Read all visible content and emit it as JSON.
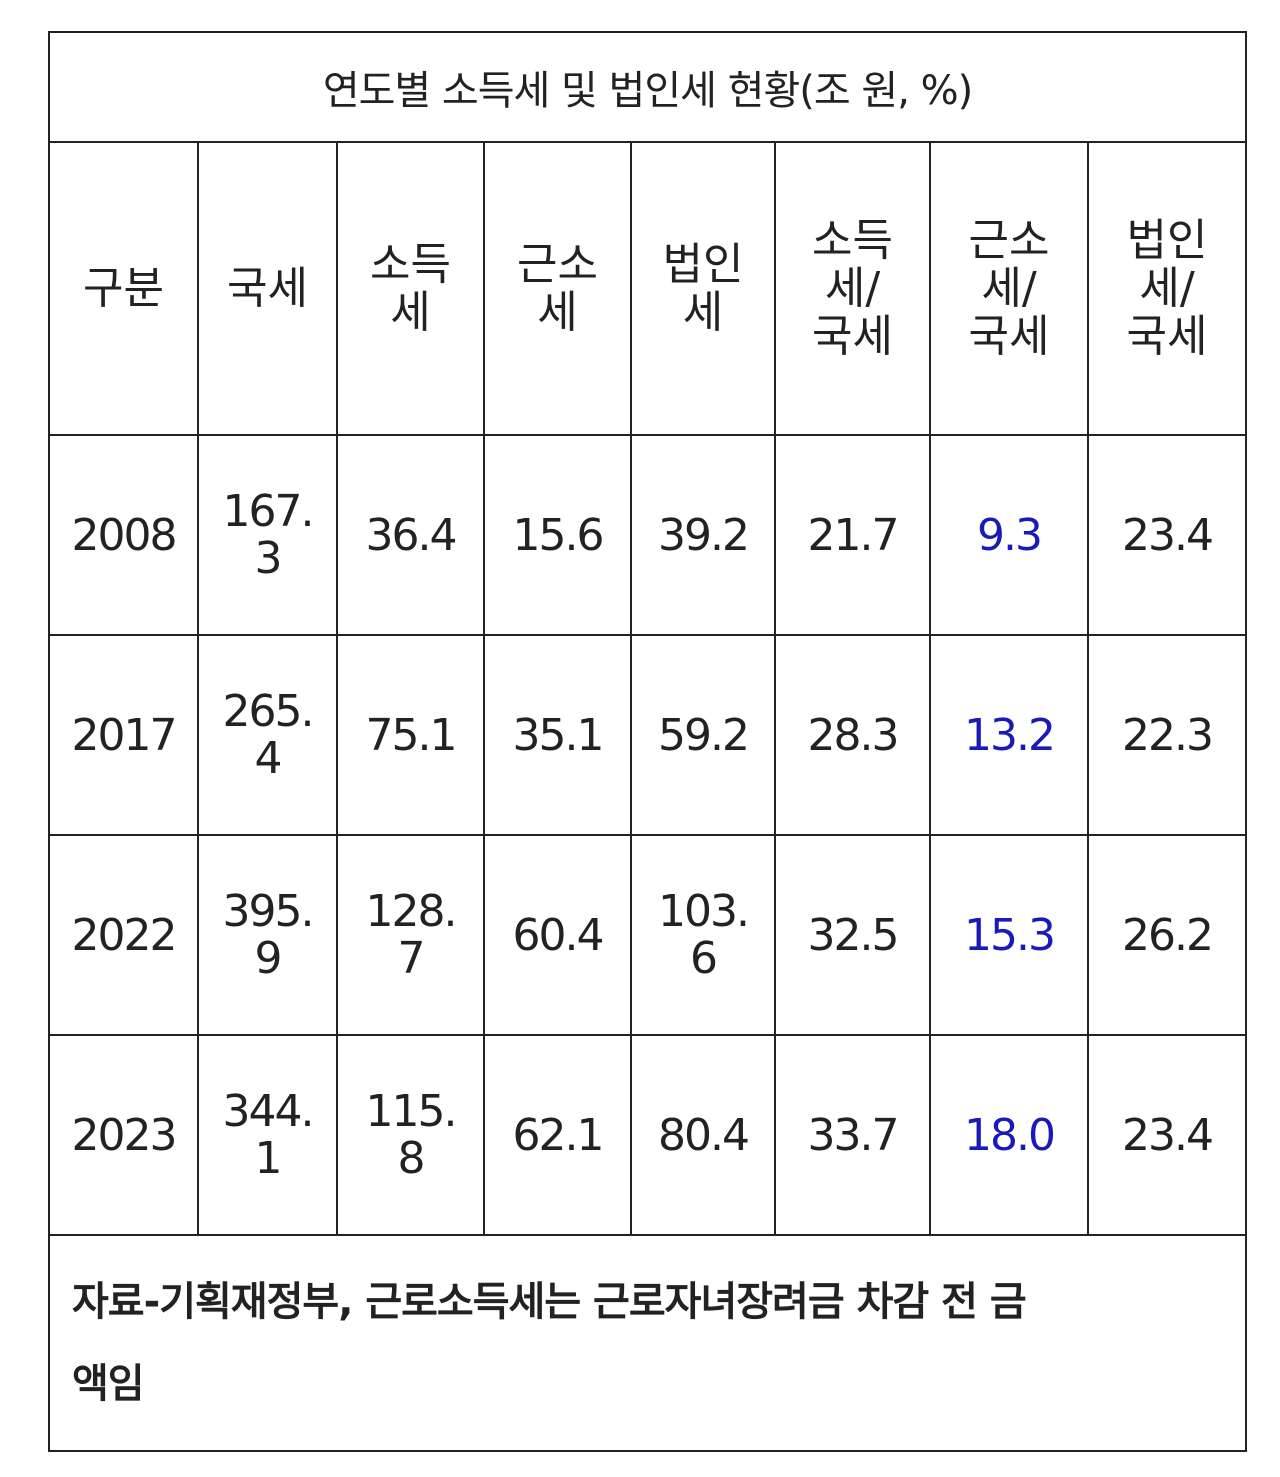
{
  "table": {
    "title": "연도별 소득세 및 법인세 현황(조 원, %)",
    "headers": [
      [
        "구분"
      ],
      [
        "국세"
      ],
      [
        "소득",
        "세"
      ],
      [
        "근소",
        "세"
      ],
      [
        "법인",
        "세"
      ],
      [
        "소득",
        "세/",
        "국세"
      ],
      [
        "근소",
        "세/",
        "국세"
      ],
      [
        "법인",
        "세/",
        "국세"
      ]
    ],
    "rows": [
      {
        "year": "2008",
        "national_tax": [
          "167.",
          "3"
        ],
        "income_tax": [
          "36.4"
        ],
        "earned_income_tax": [
          "15.6"
        ],
        "corporate_tax": [
          "39.2"
        ],
        "income_ratio": "21.7",
        "earned_ratio": "9.3",
        "corporate_ratio": "23.4"
      },
      {
        "year": "2017",
        "national_tax": [
          "265.",
          "4"
        ],
        "income_tax": [
          "75.1"
        ],
        "earned_income_tax": [
          "35.1"
        ],
        "corporate_tax": [
          "59.2"
        ],
        "income_ratio": "28.3",
        "earned_ratio": "13.2",
        "corporate_ratio": "22.3"
      },
      {
        "year": "2022",
        "national_tax": [
          "395.",
          "9"
        ],
        "income_tax": [
          "128.",
          "7"
        ],
        "earned_income_tax": [
          "60.4"
        ],
        "corporate_tax": [
          "103.",
          "6"
        ],
        "income_ratio": "32.5",
        "earned_ratio": "15.3",
        "corporate_ratio": "26.2"
      },
      {
        "year": "2023",
        "national_tax": [
          "344.",
          "1"
        ],
        "income_tax": [
          "115.",
          "8"
        ],
        "earned_income_tax": [
          "62.1"
        ],
        "corporate_tax": [
          "80.4"
        ],
        "income_ratio": "33.7",
        "earned_ratio": "18.0",
        "corporate_ratio": "23.4"
      }
    ],
    "note_lines": [
      "자료-기획재정부, 근로소득세는 근로자녀장려금 차감 전 금",
      "액임"
    ],
    "highlight_color": "#1a1ab8"
  }
}
